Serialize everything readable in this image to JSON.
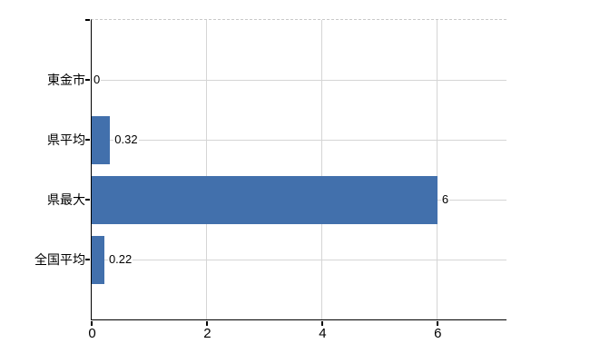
{
  "chart_data": {
    "type": "bar",
    "orientation": "horizontal",
    "title": "",
    "xlabel": "",
    "ylabel": "",
    "categories": [
      "東金市",
      "県平均",
      "県最大",
      "全国平均"
    ],
    "values": [
      0,
      0.32,
      6,
      0.22
    ],
    "value_labels": [
      "0",
      "0.32",
      "6",
      "0.22"
    ],
    "x_ticks": [
      0,
      2,
      4,
      6
    ],
    "x_tick_labels": [
      "0",
      "2",
      "4",
      "6"
    ],
    "xlim": [
      0,
      7.2
    ],
    "grid": true,
    "legend": false,
    "colors": {
      "bar": "#4270ac",
      "grid": "#d5d5d5",
      "axis": "#000000",
      "text": "#000000",
      "plot_top_border": "#c9c9c9",
      "background": "#ffffff"
    }
  }
}
